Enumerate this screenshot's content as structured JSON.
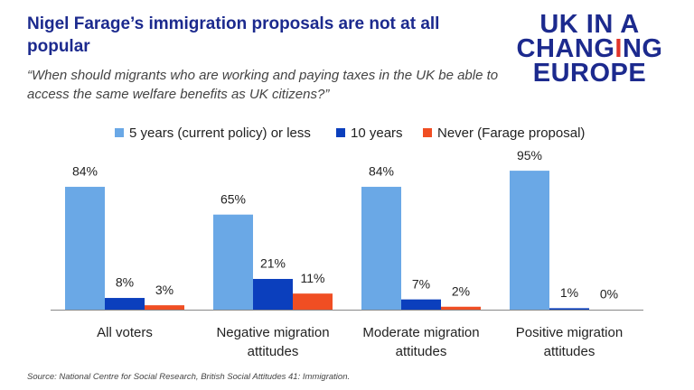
{
  "chart_data": {
    "type": "bar",
    "title": "Nigel Farage’s immigration proposals are not at all popular",
    "subtitle": "“When should migrants who are working and paying taxes in the UK be able to access the same welfare benefits as UK citizens?”",
    "source": "Source: National Centre for Social Research, British Social Attitudes 41: Immigration.",
    "logo": {
      "line1": "UK IN A",
      "line2": [
        "CHANG",
        "I",
        "NG"
      ],
      "line3": "EUROPE"
    },
    "categories": [
      "All voters",
      "Negative migration attitudes",
      "Moderate migration attitudes",
      "Positive migration attitudes"
    ],
    "series": [
      {
        "name": "5 years (current policy) or less",
        "color": "#6aa8e6",
        "values": [
          84,
          65,
          84,
          95
        ],
        "value_labels": [
          "84%",
          "65%",
          "84%",
          "95%"
        ]
      },
      {
        "name": "10 years",
        "color": "#0b3fbd",
        "values": [
          8,
          21,
          7,
          1
        ],
        "value_labels": [
          "8%",
          "21%",
          "7%",
          "1%"
        ]
      },
      {
        "name": "Never (Farage proposal)",
        "color": "#f04e23",
        "values": [
          3,
          11,
          2,
          0
        ],
        "value_labels": [
          "3%",
          "11%",
          "2%",
          "0%"
        ]
      }
    ]
  }
}
